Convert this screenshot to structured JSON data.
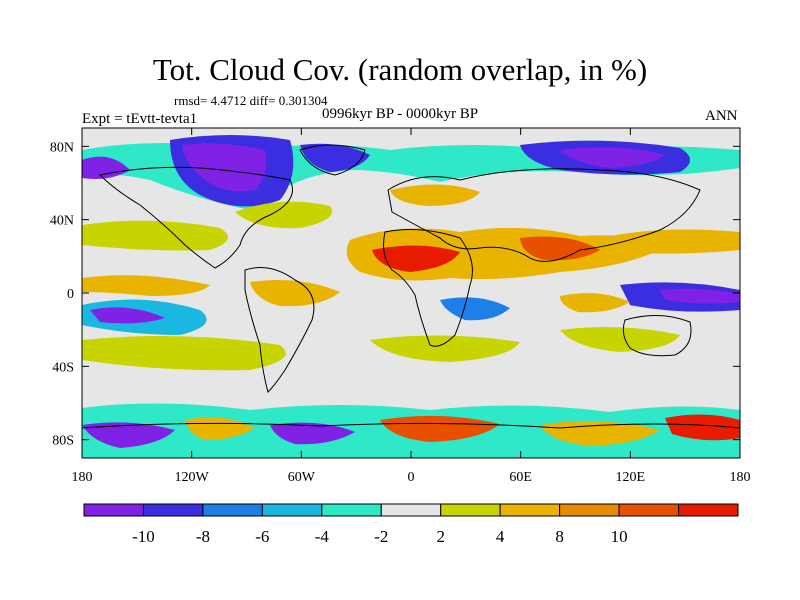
{
  "title": "Tot. Cloud Cov. (random overlap, in %)",
  "stats_line": "rmsd= 4.4712 diff= 0.301304",
  "period": "0996kyr BP - 0000kyr BP",
  "experiment": "Expt = tEvtt-tevta1",
  "season": "ANN",
  "axes": {
    "x_ticks": [
      "180",
      "120W",
      "60W",
      "0",
      "60E",
      "120E",
      "180"
    ],
    "y_ticks": [
      "80N",
      "40N",
      "0",
      "40S",
      "80S"
    ],
    "x_values": [
      -180,
      -120,
      -60,
      0,
      60,
      120,
      180
    ],
    "y_values": [
      80,
      40,
      0,
      -40,
      -80
    ]
  },
  "colorbar": {
    "labels": [
      "-10",
      "-8",
      "-6",
      "-4",
      "-2",
      "2",
      "4",
      "8",
      "10"
    ],
    "colors": [
      "#7f22e6",
      "#3a2ee0",
      "#1e7fe8",
      "#1ab8e0",
      "#2ee8c8",
      "#e6e6e6",
      "#c8d400",
      "#e8b400",
      "#e88a00",
      "#e85000",
      "#e81a00"
    ]
  },
  "palette": {
    "background": "#e6e6e6"
  }
}
